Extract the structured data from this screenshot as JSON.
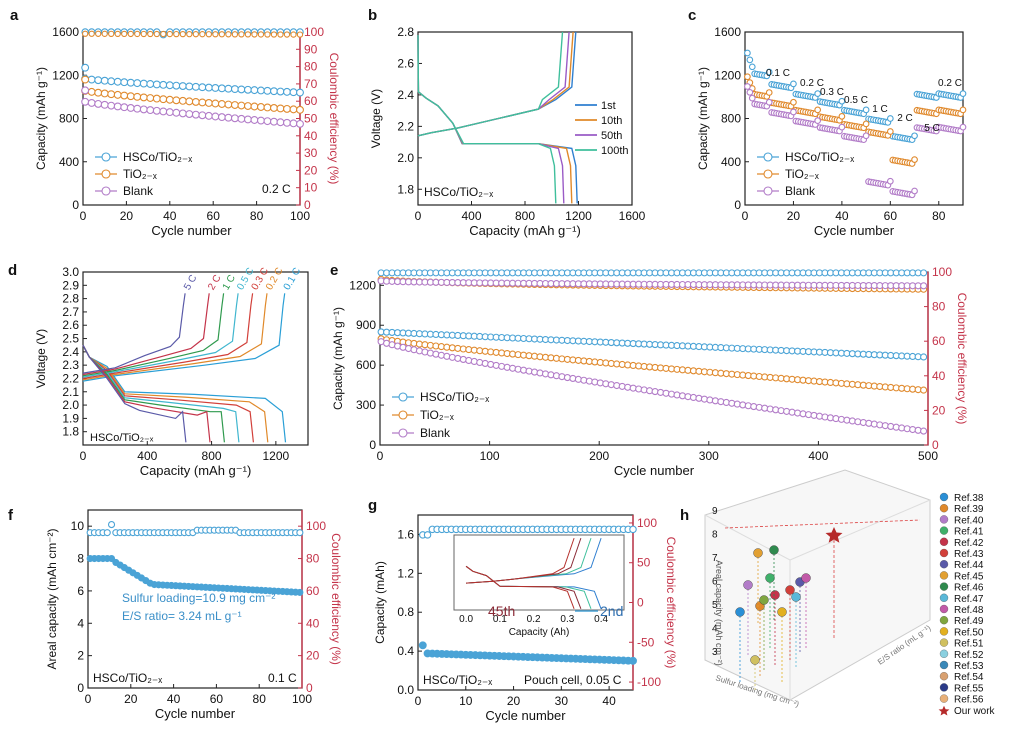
{
  "colors": {
    "hsco": "#4aa3d6",
    "tio2": "#e08a2e",
    "blank": "#b27cc8",
    "ce": "#c4344a",
    "axis": "#222222",
    "c1st": "#2f7fd0",
    "c10": "#e0892a",
    "c50": "#9a5bc6",
    "c100": "#3fbf9c"
  },
  "chart_data": [
    {
      "panel": "a",
      "type": "scatter",
      "xlabel": "Cycle number",
      "ylabel": "Capacity (mAh g⁻¹)",
      "y2label": "Coulombic efficiency (%)",
      "xlim": [
        0,
        100
      ],
      "ylim": [
        0,
        1600
      ],
      "y2lim": [
        0,
        100
      ],
      "xticks": [
        0,
        20,
        40,
        60,
        80,
        100
      ],
      "yticks": [
        0,
        400,
        800,
        1200,
        1600
      ],
      "y2ticks": [
        0,
        10,
        20,
        30,
        40,
        50,
        60,
        70,
        80,
        90,
        100
      ],
      "legend": [
        "HSCo/TiO₂₋ₓ",
        "TiO₂₋ₓ",
        "Blank"
      ],
      "annotation": "0.2 C",
      "series": [
        {
          "name": "HSCo/TiO2-x",
          "capacity": {
            "start": 1170,
            "end": 1040
          },
          "ce": {
            "start": 100,
            "end": 100
          }
        },
        {
          "name": "TiO2-x",
          "capacity": {
            "start": 1060,
            "end": 880
          },
          "ce": {
            "start": 99,
            "end": 98.5
          }
        },
        {
          "name": "Blank",
          "capacity": {
            "start": 960,
            "end": 750
          }
        }
      ]
    },
    {
      "panel": "b",
      "type": "line",
      "xlabel": "Capacity (mAh g⁻¹)",
      "ylabel": "Voltage (V)",
      "xlim": [
        0,
        1600
      ],
      "ylim": [
        1.7,
        2.8
      ],
      "xticks": [
        0,
        400,
        800,
        1200,
        1600
      ],
      "yticks": [
        1.8,
        2.0,
        2.2,
        2.4,
        2.6,
        2.8
      ],
      "legend": [
        "1st",
        "10th",
        "50th",
        "100th"
      ],
      "annotation": "HSCo/TiO₂₋ₓ",
      "series": [
        {
          "name": "1st",
          "discharge_end": 1190,
          "charge_end": 1180
        },
        {
          "name": "10th",
          "discharge_end": 1150,
          "charge_end": 1160
        },
        {
          "name": "50th",
          "discharge_end": 1090,
          "charge_end": 1130
        },
        {
          "name": "100th",
          "discharge_end": 1030,
          "charge_end": 1080
        }
      ]
    },
    {
      "panel": "c",
      "type": "scatter",
      "xlabel": "Cycle number",
      "ylabel": "Capacity (mAh g⁻¹)",
      "xlim": [
        0,
        90
      ],
      "ylim": [
        0,
        1600
      ],
      "xticks": [
        0,
        20,
        40,
        60,
        80
      ],
      "yticks": [
        0,
        400,
        800,
        1200,
        1600
      ],
      "legend": [
        "HSCo/TiO₂₋ₓ",
        "TiO₂₋ₓ",
        "Blank"
      ],
      "rate_labels": [
        "0.1 C",
        "0.2 C",
        "0.3 C",
        "0.5 C",
        "1 C",
        "2 C",
        "5 C",
        "0.2 C"
      ],
      "series": [
        {
          "name": "HSCo/TiO2-x",
          "plateaus": [
            1230,
            1120,
            1030,
            960,
            880,
            800,
            640,
            1030
          ]
        },
        {
          "name": "TiO2-x",
          "plateaus": [
            1040,
            950,
            880,
            820,
            750,
            680,
            420,
            880
          ]
        },
        {
          "name": "Blank",
          "plateaus": [
            950,
            860,
            780,
            720,
            640,
            220,
            130,
            720
          ]
        }
      ]
    },
    {
      "panel": "d",
      "type": "line",
      "xlabel": "Capacity (mAh g⁻¹)",
      "ylabel": "Voltage (V)",
      "xlim": [
        0,
        1400
      ],
      "ylim": [
        1.7,
        3.0
      ],
      "xticks": [
        0,
        400,
        800,
        1200
      ],
      "yticks": [
        1.8,
        1.9,
        2.0,
        2.1,
        2.2,
        2.3,
        2.4,
        2.5,
        2.6,
        2.7,
        2.8,
        2.9,
        3.0
      ],
      "annotation": "HSCo/TiO₂₋ₓ",
      "series": [
        {
          "name": "0.1 C",
          "capacity": 1260
        },
        {
          "name": "0.2 C",
          "capacity": 1150
        },
        {
          "name": "0.3 C",
          "capacity": 1060
        },
        {
          "name": "0.5 C",
          "capacity": 970
        },
        {
          "name": "1 C",
          "capacity": 880
        },
        {
          "name": "2 C",
          "capacity": 790
        },
        {
          "name": "5 C",
          "capacity": 640
        }
      ]
    },
    {
      "panel": "e",
      "type": "scatter",
      "xlabel": "Cycle number",
      "ylabel": "Capacity (mAh g⁻¹)",
      "y2label": "Coulombic efficiency (%)",
      "xlim": [
        0,
        500
      ],
      "ylim": [
        0,
        1300
      ],
      "y2lim": [
        0,
        100
      ],
      "xticks": [
        0,
        100,
        200,
        300,
        400,
        500
      ],
      "yticks": [
        0,
        300,
        600,
        900,
        1200
      ],
      "y2ticks": [
        0,
        20,
        40,
        60,
        80,
        100
      ],
      "legend": [
        "HSCo/TiO₂₋ₓ",
        "TiO₂₋ₓ",
        "Blank"
      ],
      "series": [
        {
          "name": "HSCo/TiO2-x",
          "capacity": {
            "start": 850,
            "end": 660
          },
          "ce": {
            "start": 99.5,
            "end": 99.5
          }
        },
        {
          "name": "TiO2-x",
          "capacity": {
            "start": 800,
            "end": 410
          },
          "ce": {
            "start": 96,
            "end": 90
          }
        },
        {
          "name": "Blank",
          "capacity": {
            "start": 780,
            "end": 100
          },
          "ce": {
            "start": 95,
            "end": 92
          }
        }
      ]
    },
    {
      "panel": "f",
      "type": "scatter",
      "xlabel": "Cycle number",
      "ylabel": "Areal capacity (mAh cm⁻²)",
      "y2label": "Coulombic efficiency (%)",
      "xlim": [
        0,
        100
      ],
      "ylim": [
        0,
        11
      ],
      "y2lim": [
        0,
        110
      ],
      "xticks": [
        0,
        20,
        40,
        60,
        80,
        100
      ],
      "yticks": [
        0,
        2,
        4,
        6,
        8,
        10
      ],
      "y2ticks": [
        0,
        20,
        40,
        60,
        80,
        100
      ],
      "annotations": [
        "Sulfur loading=10.9 mg cm⁻²",
        "E/S ratio= 3.24 mL g⁻¹",
        "HSCo/TiO₂₋ₓ",
        "0.1 C"
      ],
      "series": [
        {
          "name": "capacity",
          "start": 8.0,
          "end": 5.9
        },
        {
          "name": "ce",
          "value": 96
        }
      ]
    },
    {
      "panel": "g",
      "type": "scatter",
      "xlabel": "Cycle number",
      "ylabel": "Capacity (mAh)",
      "y2label": "Coulombic efficiency (%)",
      "xlim": [
        0,
        45
      ],
      "ylim": [
        0,
        1.8
      ],
      "y2lim": [
        -110,
        110
      ],
      "xticks": [
        0,
        10,
        20,
        30,
        40
      ],
      "yticks": [
        0.0,
        0.4,
        0.8,
        1.2,
        1.6
      ],
      "y2ticks": [
        -100,
        -50,
        0,
        50,
        100
      ],
      "annotations": [
        "HSCo/TiO₂₋ₓ",
        "Pouch cell, 0.05 C",
        "45th",
        "2nd"
      ],
      "inset": {
        "xlabel": "Capacity (Ah)",
        "xticks": [
          0.0,
          0.1,
          0.2,
          0.3,
          0.4
        ]
      },
      "series": [
        {
          "name": "capacity",
          "start": 0.46,
          "end": 0.3
        },
        {
          "name": "ce",
          "value": 92
        }
      ]
    },
    {
      "panel": "h",
      "type": "scatter3d",
      "zlabel": "Areal capacity (mAh cm⁻²)",
      "zticks": [
        3,
        4,
        5,
        6,
        7,
        8,
        9
      ],
      "xlabel": "Sulfur loading (mg cm⁻²)",
      "ylabel": "E/S ratio (mL g⁻¹)",
      "legend": [
        "Ref.38",
        "Ref.39",
        "Ref.40",
        "Ref.41",
        "Ref.42",
        "Ref.43",
        "Ref.44",
        "Ref.45",
        "Ref.46",
        "Ref.47",
        "Ref.48",
        "Ref.49",
        "Ref.50",
        "Ref.51",
        "Ref.52",
        "Ref.53",
        "Ref.54",
        "Ref.55",
        "Ref.56",
        "Our work"
      ],
      "legend_colors": [
        "#2a8fd6",
        "#e0892a",
        "#b27cc8",
        "#3fb06a",
        "#c4344a",
        "#d2403a",
        "#5a5aa8",
        "#e2a032",
        "#2f8a4e",
        "#5ab8d8",
        "#c25aa8",
        "#7fa640",
        "#e2b020",
        "#d0c060",
        "#8ad0e0",
        "#3a88b8",
        "#d8a070",
        "#2a3a88",
        "#e8b078",
        "#b52a2a"
      ],
      "points": [
        {
          "name": "Our work",
          "z": 8.4
        }
      ]
    }
  ],
  "panels": {
    "a": "a",
    "b": "b",
    "c": "c",
    "d": "d",
    "e": "e",
    "f": "f",
    "g": "g",
    "h": "h"
  }
}
